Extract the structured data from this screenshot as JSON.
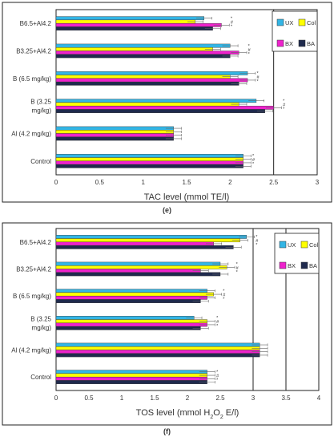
{
  "chart_data": [
    {
      "type": "bar",
      "orientation": "horizontal",
      "caption": "(e)",
      "xlabel": "TAC level (mmol TE/l)",
      "xlim": [
        0,
        3
      ],
      "xticks": [
        "0",
        "0.5",
        "1",
        "1.5",
        "2",
        "2.5",
        "3"
      ],
      "grid": "vertical lines at 2.5 and 3",
      "legend_position": "right",
      "categories": [
        "Control",
        "Al (4.2 mg/kg)",
        "B (3.25\nmg/kg)",
        "B (6.5 mg/kg)",
        "B3.25+Al4.2",
        "B6.5+Al4.2"
      ],
      "series": [
        {
          "name": "UX",
          "color": "#33b5e5",
          "values": [
            2.15,
            1.35,
            2.3,
            2.2,
            2.0,
            1.7
          ]
        },
        {
          "name": "Col",
          "color": "#ffff00",
          "values": [
            2.15,
            1.35,
            2.1,
            2.0,
            1.8,
            1.6
          ]
        },
        {
          "name": "BX",
          "color": "#ee22cc",
          "values": [
            2.15,
            1.35,
            2.5,
            2.2,
            2.1,
            1.9
          ]
        },
        {
          "name": "BA",
          "color": "#1f2a4d",
          "values": [
            2.15,
            1.35,
            2.4,
            2.1,
            2.0,
            1.8
          ]
        }
      ],
      "annotations": [
        "*",
        "#"
      ]
    },
    {
      "type": "bar",
      "orientation": "horizontal",
      "caption": "(f)",
      "xlabel": "TOS level (mmol H",
      "xlabel_sub": "2",
      "xlabel_mid": "O",
      "xlabel_sub2": "2",
      "xlabel_end": " E/l)",
      "xlim": [
        0,
        4
      ],
      "xticks": [
        "0",
        "0.5",
        "1",
        "1.5",
        "2",
        "2.5",
        "3",
        "3.5",
        "4"
      ],
      "grid": "vertical lines at 3, 3.5 and 4",
      "legend_position": "right",
      "categories": [
        "Control",
        "Al (4.2 mg/kg)",
        "B (3.25\nmg/kg)",
        "B (6.5 mg/kg)",
        "B3.25+Al4.2",
        "B6.5+Al4.2"
      ],
      "series": [
        {
          "name": "UX",
          "color": "#33b5e5",
          "values": [
            2.3,
            3.1,
            2.1,
            2.3,
            2.5,
            2.9
          ]
        },
        {
          "name": "Col",
          "color": "#ffff00",
          "values": [
            2.3,
            3.1,
            2.3,
            2.4,
            2.6,
            2.8
          ]
        },
        {
          "name": "BX",
          "color": "#ee22cc",
          "values": [
            2.3,
            3.1,
            2.3,
            2.3,
            2.2,
            2.4
          ]
        },
        {
          "name": "BA",
          "color": "#1f2a4d",
          "values": [
            2.3,
            3.1,
            2.2,
            2.2,
            2.5,
            2.7
          ]
        }
      ],
      "annotations": [
        "*",
        "#"
      ]
    }
  ]
}
